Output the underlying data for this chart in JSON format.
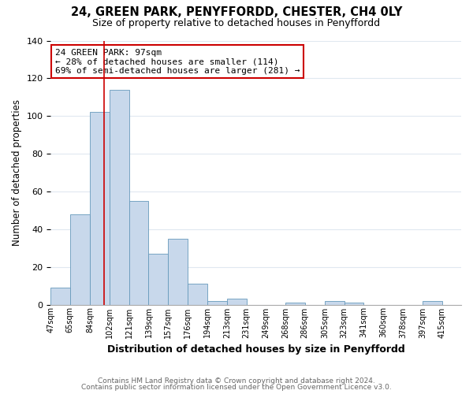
{
  "title1": "24, GREEN PARK, PENYFFORDD, CHESTER, CH4 0LY",
  "title2": "Size of property relative to detached houses in Penyffordd",
  "xlabel": "Distribution of detached houses by size in Penyffordd",
  "ylabel": "Number of detached properties",
  "bin_labels": [
    "47sqm",
    "65sqm",
    "84sqm",
    "102sqm",
    "121sqm",
    "139sqm",
    "157sqm",
    "176sqm",
    "194sqm",
    "213sqm",
    "231sqm",
    "249sqm",
    "268sqm",
    "286sqm",
    "305sqm",
    "323sqm",
    "341sqm",
    "360sqm",
    "378sqm",
    "397sqm",
    "415sqm"
  ],
  "bin_edges": [
    47,
    65,
    84,
    102,
    121,
    139,
    157,
    176,
    194,
    213,
    231,
    249,
    268,
    286,
    305,
    323,
    341,
    360,
    378,
    397,
    415
  ],
  "bar_heights": [
    9,
    48,
    102,
    114,
    55,
    27,
    35,
    11,
    2,
    3,
    0,
    0,
    1,
    0,
    2,
    1,
    0,
    0,
    0,
    2,
    0
  ],
  "bar_color": "#c8d8eb",
  "bar_edge_color": "#6699bb",
  "vline_x": 97,
  "vline_color": "#cc0000",
  "ylim": [
    0,
    140
  ],
  "yticks": [
    0,
    20,
    40,
    60,
    80,
    100,
    120,
    140
  ],
  "annotation_title": "24 GREEN PARK: 97sqm",
  "annotation_line1": "← 28% of detached houses are smaller (114)",
  "annotation_line2": "69% of semi-detached houses are larger (281) →",
  "annotation_box_color": "#ffffff",
  "annotation_box_edge": "#cc0000",
  "footer1": "Contains HM Land Registry data © Crown copyright and database right 2024.",
  "footer2": "Contains public sector information licensed under the Open Government Licence v3.0.",
  "bg_color": "#ffffff",
  "plot_bg_color": "#ffffff",
  "grid_color": "#e0e8f0"
}
